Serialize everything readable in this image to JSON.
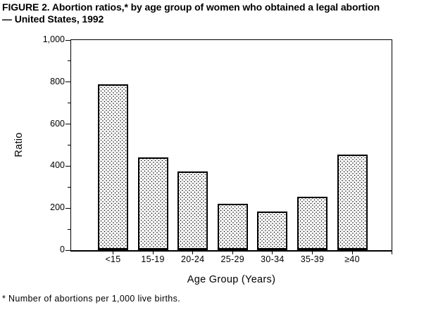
{
  "title": {
    "line1": "FIGURE 2. Abortion ratios,* by age group of women who obtained a legal abortion",
    "line2": "— United States, 1992"
  },
  "footnote": "* Number of abortions per 1,000 live births.",
  "colors": {
    "ink": "#000000",
    "paper": "#ffffff"
  },
  "chart_data": {
    "type": "bar",
    "title": "FIGURE 2. Abortion ratios,* by age group of women who obtained a legal abortion — United States, 1992",
    "categories": [
      "<15",
      "15-19",
      "20-24",
      "25-29",
      "30-34",
      "35-39",
      "≥40"
    ],
    "values": [
      790,
      440,
      375,
      220,
      185,
      255,
      455
    ],
    "xlabel": "Age Group (Years)",
    "ylabel": "Ratio",
    "ylim": [
      0,
      1000
    ],
    "y_major_ticks": [
      0,
      200,
      400,
      600,
      800,
      1000
    ],
    "y_major_tick_labels": [
      "0",
      "200",
      "400",
      "600",
      "800",
      "1,000"
    ],
    "y_minor_ticks": [
      100,
      300,
      500,
      700,
      900
    ],
    "grid": false,
    "legend": false,
    "bar_fill_style": "stipple-dots",
    "bar_border_color": "#000000",
    "background": "#ffffff"
  }
}
